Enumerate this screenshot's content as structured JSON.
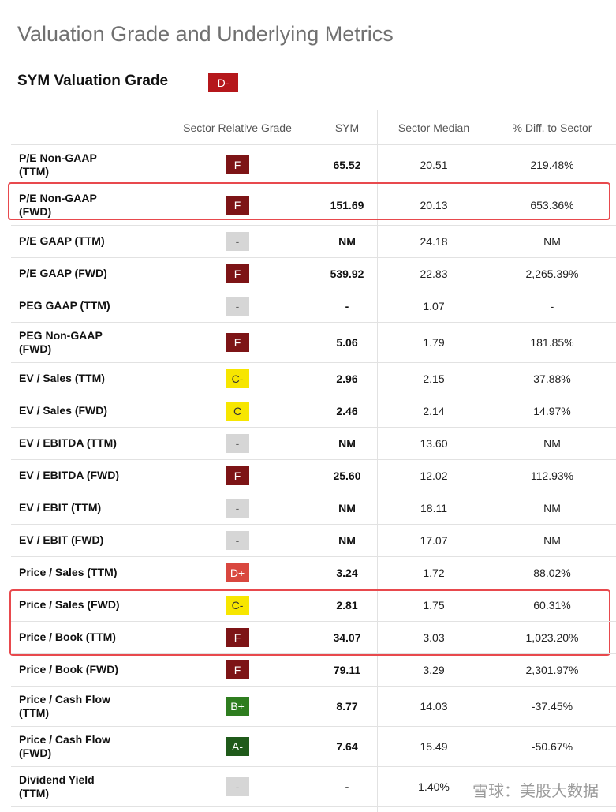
{
  "header": {
    "title": "Valuation Grade and Underlying Metrics",
    "grade_label": "SYM Valuation Grade",
    "grade": {
      "text": "D-",
      "color": "#b5171b",
      "text_color": "#ffffff"
    }
  },
  "table": {
    "columns": [
      "Sector Relative Grade",
      "SYM",
      "Sector Median",
      "% Diff. to Sector"
    ],
    "rows": [
      {
        "metric": "P/E Non-GAAP\n(TTM)",
        "grade": {
          "text": "F",
          "color": "#7d1416",
          "text_color": "#ffffff"
        },
        "cells": [
          "65.52",
          "20.51",
          "219.48%"
        ]
      },
      {
        "metric": "P/E Non-GAAP\n(FWD)",
        "grade": {
          "text": "F",
          "color": "#7d1416",
          "text_color": "#ffffff"
        },
        "cells": [
          "151.69",
          "20.13",
          "653.36%"
        ]
      },
      {
        "metric": "P/E GAAP (TTM)",
        "grade": {
          "text": "-",
          "color": "#d6d6d6",
          "text_color": "#666666"
        },
        "cells": [
          "NM",
          "24.18",
          "NM"
        ]
      },
      {
        "metric": "P/E GAAP (FWD)",
        "grade": {
          "text": "F",
          "color": "#7d1416",
          "text_color": "#ffffff"
        },
        "cells": [
          "539.92",
          "22.83",
          "2,265.39%"
        ]
      },
      {
        "metric": "PEG GAAP (TTM)",
        "grade": {
          "text": "-",
          "color": "#d6d6d6",
          "text_color": "#666666"
        },
        "cells": [
          "-",
          "1.07",
          "-"
        ]
      },
      {
        "metric": "PEG Non-GAAP\n(FWD)",
        "grade": {
          "text": "F",
          "color": "#7d1416",
          "text_color": "#ffffff"
        },
        "cells": [
          "5.06",
          "1.79",
          "181.85%"
        ]
      },
      {
        "metric": "EV / Sales (TTM)",
        "grade": {
          "text": "C-",
          "color": "#f7e600",
          "text_color": "#333333"
        },
        "cells": [
          "2.96",
          "2.15",
          "37.88%"
        ]
      },
      {
        "metric": "EV / Sales (FWD)",
        "grade": {
          "text": "C",
          "color": "#f7e600",
          "text_color": "#333333"
        },
        "cells": [
          "2.46",
          "2.14",
          "14.97%"
        ]
      },
      {
        "metric": "EV / EBITDA (TTM)",
        "grade": {
          "text": "-",
          "color": "#d6d6d6",
          "text_color": "#666666"
        },
        "cells": [
          "NM",
          "13.60",
          "NM"
        ]
      },
      {
        "metric": "EV / EBITDA (FWD)",
        "grade": {
          "text": "F",
          "color": "#7d1416",
          "text_color": "#ffffff"
        },
        "cells": [
          "25.60",
          "12.02",
          "112.93%"
        ]
      },
      {
        "metric": "EV / EBIT (TTM)",
        "grade": {
          "text": "-",
          "color": "#d6d6d6",
          "text_color": "#666666"
        },
        "cells": [
          "NM",
          "18.11",
          "NM"
        ]
      },
      {
        "metric": "EV / EBIT (FWD)",
        "grade": {
          "text": "-",
          "color": "#d6d6d6",
          "text_color": "#666666"
        },
        "cells": [
          "NM",
          "17.07",
          "NM"
        ]
      },
      {
        "metric": "Price / Sales (TTM)",
        "grade": {
          "text": "D+",
          "color": "#d9473f",
          "text_color": "#ffffff"
        },
        "cells": [
          "3.24",
          "1.72",
          "88.02%"
        ]
      },
      {
        "metric": "Price / Sales (FWD)",
        "grade": {
          "text": "C-",
          "color": "#f7e600",
          "text_color": "#333333"
        },
        "cells": [
          "2.81",
          "1.75",
          "60.31%"
        ]
      },
      {
        "metric": "Price / Book (TTM)",
        "grade": {
          "text": "F",
          "color": "#7d1416",
          "text_color": "#ffffff"
        },
        "cells": [
          "34.07",
          "3.03",
          "1,023.20%"
        ]
      },
      {
        "metric": "Price / Book (FWD)",
        "grade": {
          "text": "F",
          "color": "#7d1416",
          "text_color": "#ffffff"
        },
        "cells": [
          "79.11",
          "3.29",
          "2,301.97%"
        ]
      },
      {
        "metric": "Price / Cash Flow\n(TTM)",
        "grade": {
          "text": "B+",
          "color": "#2e7d1f",
          "text_color": "#ffffff"
        },
        "cells": [
          "8.77",
          "14.03",
          "-37.45%"
        ]
      },
      {
        "metric": "Price / Cash Flow\n(FWD)",
        "grade": {
          "text": "A-",
          "color": "#1f5a1a",
          "text_color": "#ffffff"
        },
        "cells": [
          "7.64",
          "15.49",
          "-50.67%"
        ]
      },
      {
        "metric": "Dividend Yield\n(TTM)",
        "grade": {
          "text": "-",
          "color": "#d6d6d6",
          "text_color": "#666666"
        },
        "cells": [
          "-",
          "1.40%"
        ]
      }
    ]
  },
  "watermark": "雪球：美股大数据"
}
